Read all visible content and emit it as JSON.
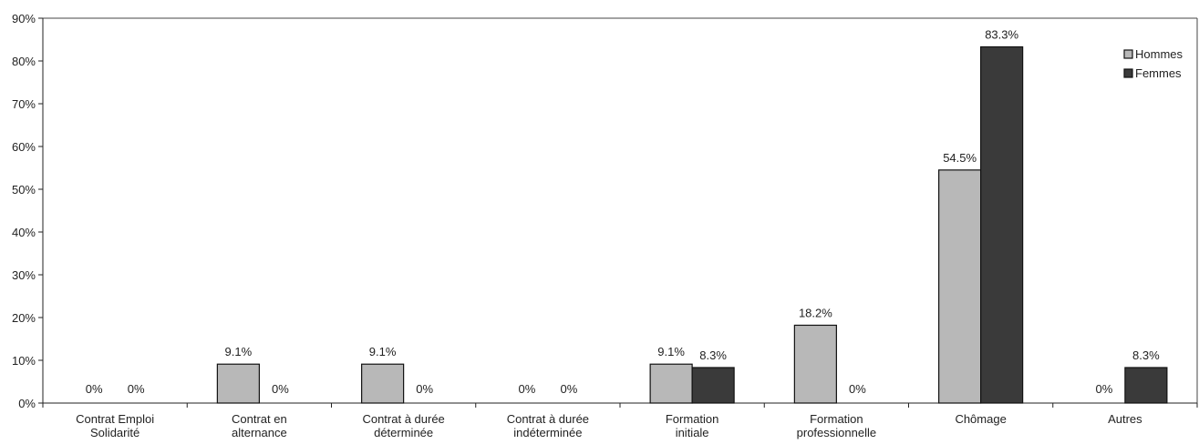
{
  "chart_data": {
    "type": "bar",
    "categories": [
      [
        "Contrat Emploi",
        "Solidarité"
      ],
      [
        "Contrat en",
        "alternance"
      ],
      [
        "Contrat à durée",
        "déterminée"
      ],
      [
        "Contrat à durée",
        "indéterminée"
      ],
      [
        "Formation",
        "initiale"
      ],
      [
        "Formation",
        "professionnelle"
      ],
      [
        "Chômage"
      ],
      [
        "Autres"
      ]
    ],
    "series": [
      {
        "name": "Hommes",
        "color": "#b8b8b8",
        "values": [
          0,
          9.1,
          9.1,
          0,
          9.1,
          18.2,
          54.5,
          0
        ],
        "labels": [
          "0%",
          "9.1%",
          "9.1%",
          "0%",
          "9.1%",
          "18.2%",
          "54.5%",
          "0%"
        ]
      },
      {
        "name": "Femmes",
        "color": "#3a3a3a",
        "values": [
          0,
          0,
          0,
          0,
          8.3,
          0,
          83.3,
          8.3
        ],
        "labels": [
          "0%",
          "0%",
          "0%",
          "0%",
          "8.3%",
          "0%",
          "83.3%",
          "8.3%"
        ]
      }
    ],
    "yticks": [
      "0%",
      "10%",
      "20%",
      "30%",
      "40%",
      "50%",
      "60%",
      "70%",
      "80%",
      "90%"
    ],
    "ylim": [
      0,
      90
    ],
    "legend_position": "top-right",
    "grid": false
  }
}
